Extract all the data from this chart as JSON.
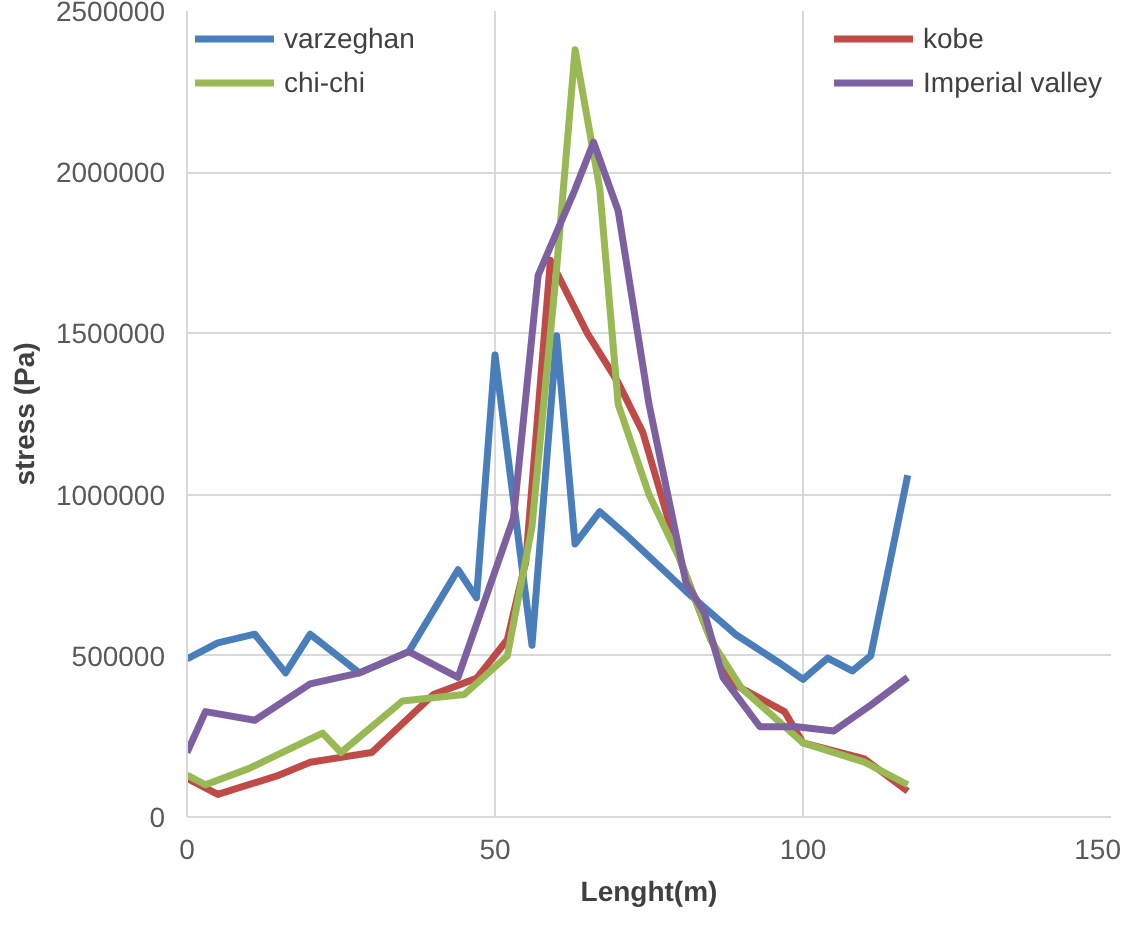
{
  "chart_data": {
    "type": "line",
    "xlabel": "Lenght(m)",
    "ylabel": "stress (Pa)",
    "xlim": [
      0,
      150
    ],
    "xticks": [
      0,
      50,
      100,
      150
    ],
    "ylim": [
      0,
      2500000
    ],
    "yticks": [
      0,
      500000,
      1000000,
      1500000,
      2000000,
      2500000
    ],
    "grid": true,
    "legend": "top",
    "marker": "none",
    "line_style": "solid",
    "series": [
      {
        "name": "varzeghan",
        "color": "#4a7ebb",
        "x": [
          0,
          5,
          11,
          16,
          20,
          28,
          36,
          44,
          47,
          50,
          56,
          60,
          63,
          67,
          71,
          81,
          89,
          96,
          100,
          104,
          108,
          111,
          117
        ],
        "values": [
          490000,
          540000,
          567000,
          447000,
          567000,
          447000,
          513000,
          767000,
          680000,
          1433000,
          533000,
          1493000,
          847000,
          947000,
          880000,
          700000,
          567000,
          480000,
          427000,
          493000,
          453000,
          500000,
          1060000
        ]
      },
      {
        "name": "kobe",
        "color": "#be4b48",
        "x": [
          0,
          5,
          15,
          20,
          30,
          40,
          47,
          52,
          55,
          59,
          65,
          70,
          74,
          80,
          84,
          88,
          97,
          100,
          110,
          117
        ],
        "values": [
          120000,
          70000,
          130000,
          170000,
          200000,
          380000,
          430000,
          550000,
          793000,
          1727000,
          1500000,
          1347000,
          1193000,
          800000,
          600000,
          420000,
          327000,
          230000,
          180000,
          80000
        ]
      },
      {
        "name": "chi-chi",
        "color": "#98b954",
        "x": [
          0,
          3,
          10,
          22,
          25,
          35,
          45,
          52,
          56,
          60,
          63,
          67,
          70,
          75,
          80,
          85,
          90,
          100,
          110,
          117
        ],
        "values": [
          130000,
          100000,
          150000,
          260000,
          200000,
          360000,
          380000,
          500000,
          900000,
          1700000,
          2380000,
          1950000,
          1280000,
          1000000,
          800000,
          550000,
          400000,
          230000,
          170000,
          100000
        ]
      },
      {
        "name": "Imperial valley",
        "color": "#7d60a0",
        "x": [
          0,
          3,
          11,
          20,
          28,
          36,
          44,
          53,
          57,
          63,
          66,
          70,
          75,
          81,
          84,
          87,
          93,
          99,
          105,
          111,
          117
        ],
        "values": [
          200000,
          327000,
          300000,
          413000,
          447000,
          513000,
          433000,
          927000,
          1680000,
          1947000,
          2093000,
          1880000,
          1280000,
          727000,
          633000,
          433000,
          280000,
          280000,
          267000,
          347000,
          433000
        ]
      }
    ]
  }
}
